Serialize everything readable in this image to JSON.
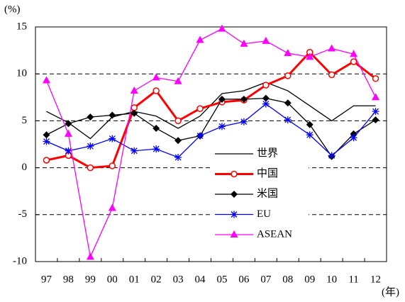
{
  "chart_data": {
    "type": "line",
    "y_unit_label": "(%)",
    "x_unit_label": "(年)",
    "categories": [
      "97",
      "98",
      "99",
      "00",
      "01",
      "02",
      "03",
      "04",
      "05",
      "06",
      "07",
      "08",
      "09",
      "10",
      "11",
      "12"
    ],
    "series": [
      {
        "name": "世界",
        "color": "#000000",
        "width": 1.3,
        "marker": "none",
        "values": [
          6.0,
          4.8,
          3.1,
          5.4,
          6.0,
          5.5,
          4.2,
          5.5,
          7.9,
          8.2,
          9.1,
          8.2,
          6.6,
          5.0,
          6.6,
          6.6
        ]
      },
      {
        "name": "中国",
        "color": "#ff0000",
        "width": 3,
        "marker": "circle",
        "values": [
          0.8,
          1.3,
          0.0,
          0.2,
          6.4,
          8.2,
          5.0,
          6.3,
          7.0,
          7.2,
          8.8,
          9.8,
          12.3,
          9.9,
          11.3,
          9.5
        ]
      },
      {
        "name": "米国",
        "color": "#000000",
        "width": 1.3,
        "marker": "diamond",
        "values": [
          3.5,
          4.7,
          5.4,
          5.6,
          5.8,
          4.2,
          2.9,
          3.4,
          7.3,
          7.3,
          7.4,
          6.9,
          4.6,
          1.2,
          3.6,
          5.1
        ]
      },
      {
        "name": "EU",
        "color": "#0000ff",
        "width": 1.3,
        "marker": "asterisk",
        "values": [
          2.8,
          1.8,
          2.3,
          3.1,
          1.8,
          2.0,
          1.1,
          3.4,
          4.4,
          4.9,
          6.8,
          5.1,
          3.5,
          1.3,
          3.2,
          6.0
        ]
      },
      {
        "name": "ASEAN",
        "color": "#ff00ff",
        "width": 1.3,
        "marker": "triangle",
        "values": [
          9.3,
          3.6,
          -9.5,
          -4.3,
          8.2,
          9.6,
          9.2,
          13.6,
          14.8,
          13.2,
          13.5,
          12.2,
          11.8,
          12.7,
          12.1,
          7.5
        ]
      }
    ],
    "ylim": [
      -10,
      15
    ],
    "yticks": [
      -10,
      -5,
      0,
      5,
      10,
      15
    ],
    "grid": true,
    "grid_style": "dashed",
    "legend": "lower center"
  }
}
